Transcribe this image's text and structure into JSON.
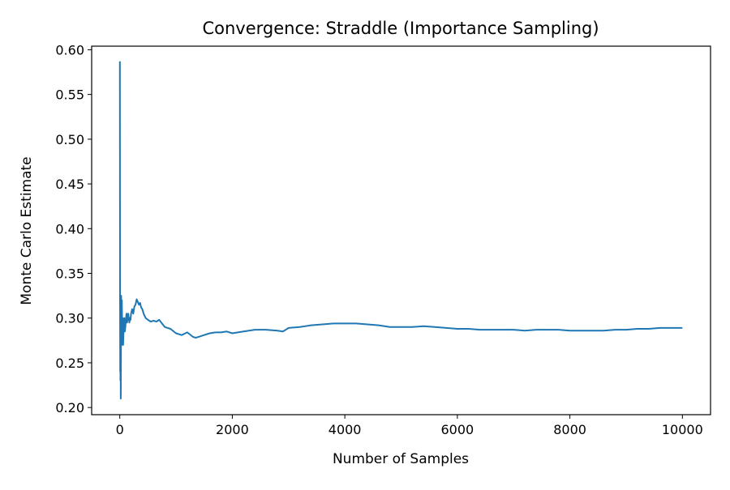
{
  "chart_data": {
    "type": "line",
    "title": "Convergence: Straddle (Importance Sampling)",
    "xlabel": "Number of Samples",
    "ylabel": "Monte Carlo Estimate",
    "xlim": [
      -500,
      10500
    ],
    "ylim": [
      0.192,
      0.604
    ],
    "xticks": [
      0,
      2000,
      4000,
      6000,
      8000,
      10000
    ],
    "xtick_labels": [
      "0",
      "2000",
      "4000",
      "6000",
      "8000",
      "10000"
    ],
    "yticks": [
      0.2,
      0.25,
      0.3,
      0.35,
      0.4,
      0.45,
      0.5,
      0.55,
      0.6
    ],
    "ytick_labels": [
      "0.20",
      "0.25",
      "0.30",
      "0.35",
      "0.40",
      "0.45",
      "0.50",
      "0.55",
      "0.60"
    ],
    "grid": false,
    "legend": "none",
    "series": [
      {
        "color": "#1f77b4",
        "x": [
          1,
          3,
          5,
          8,
          10,
          12,
          15,
          18,
          20,
          22,
          25,
          28,
          30,
          33,
          36,
          40,
          45,
          50,
          55,
          60,
          70,
          80,
          90,
          100,
          110,
          120,
          130,
          140,
          150,
          160,
          170,
          180,
          190,
          200,
          220,
          240,
          260,
          280,
          300,
          320,
          340,
          360,
          380,
          400,
          430,
          460,
          500,
          550,
          600,
          650,
          700,
          750,
          800,
          900,
          1000,
          1100,
          1200,
          1300,
          1350,
          1400,
          1500,
          1600,
          1700,
          1800,
          1900,
          2000,
          2100,
          2200,
          2400,
          2600,
          2800,
          2900,
          3000,
          3200,
          3400,
          3600,
          3800,
          4000,
          4200,
          4400,
          4600,
          4800,
          5000,
          5200,
          5400,
          5600,
          5800,
          6000,
          6200,
          6400,
          6600,
          6800,
          7000,
          7200,
          7400,
          7600,
          7800,
          8000,
          8200,
          8400,
          8600,
          8800,
          9000,
          9200,
          9400,
          9600,
          9800,
          10000
        ],
        "y": [
          0.587,
          0.45,
          0.33,
          0.24,
          0.28,
          0.23,
          0.26,
          0.21,
          0.25,
          0.28,
          0.325,
          0.29,
          0.31,
          0.27,
          0.32,
          0.3,
          0.285,
          0.3,
          0.28,
          0.27,
          0.29,
          0.3,
          0.285,
          0.29,
          0.3,
          0.305,
          0.295,
          0.3,
          0.305,
          0.3,
          0.295,
          0.3,
          0.298,
          0.305,
          0.31,
          0.305,
          0.313,
          0.315,
          0.321,
          0.318,
          0.315,
          0.317,
          0.312,
          0.31,
          0.304,
          0.3,
          0.298,
          0.296,
          0.297,
          0.296,
          0.298,
          0.294,
          0.29,
          0.288,
          0.283,
          0.281,
          0.284,
          0.279,
          0.278,
          0.279,
          0.281,
          0.283,
          0.284,
          0.284,
          0.285,
          0.283,
          0.284,
          0.285,
          0.287,
          0.287,
          0.286,
          0.285,
          0.289,
          0.29,
          0.292,
          0.293,
          0.294,
          0.294,
          0.294,
          0.293,
          0.292,
          0.29,
          0.29,
          0.29,
          0.291,
          0.29,
          0.289,
          0.288,
          0.288,
          0.287,
          0.287,
          0.287,
          0.287,
          0.286,
          0.287,
          0.287,
          0.287,
          0.286,
          0.286,
          0.286,
          0.286,
          0.287,
          0.287,
          0.288,
          0.288,
          0.289,
          0.289,
          0.289
        ]
      }
    ]
  }
}
